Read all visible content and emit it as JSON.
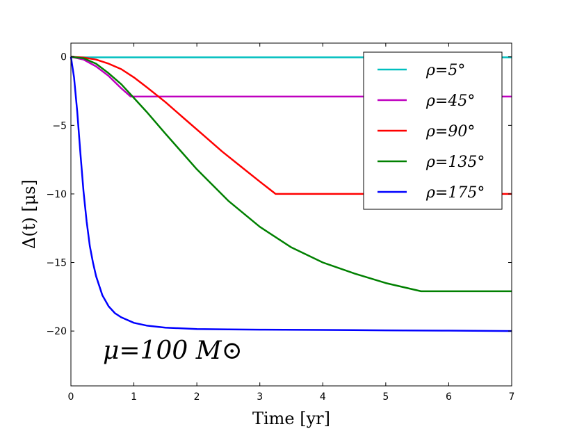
{
  "chart_data": {
    "type": "line",
    "xlabel": "Time  [yr]",
    "ylabel": "Δ(t)  [μs]",
    "xlim": [
      0,
      7
    ],
    "ylim": [
      -24,
      1
    ],
    "xticks": [
      0,
      1,
      2,
      3,
      4,
      5,
      6,
      7
    ],
    "yticks": [
      0,
      -5,
      -10,
      -15,
      -20
    ],
    "xtick_labels": [
      "0",
      "1",
      "2",
      "3",
      "4",
      "5",
      "6",
      "7"
    ],
    "ytick_labels": [
      "0",
      "−5",
      "−10",
      "−15",
      "−20"
    ],
    "grid": false,
    "legend_position": "top-right",
    "annotation": "μ=100 M⊙",
    "series": [
      {
        "name": "ρ=5°",
        "color": "#00bfbf",
        "x": [
          0,
          0.05,
          0.1,
          0.15,
          0.2,
          7
        ],
        "y": [
          0,
          -0.02,
          -0.03,
          -0.04,
          -0.04,
          -0.04
        ]
      },
      {
        "name": "ρ=45°",
        "color": "#bf00bf",
        "x": [
          0,
          0.2,
          0.4,
          0.6,
          0.8,
          0.95,
          7
        ],
        "y": [
          0,
          -0.2,
          -0.7,
          -1.4,
          -2.3,
          -2.9,
          -2.9
        ]
      },
      {
        "name": "ρ=90°",
        "color": "#ff0000",
        "x": [
          0,
          0.2,
          0.4,
          0.6,
          0.8,
          1.0,
          1.2,
          1.5,
          1.8,
          2.1,
          2.4,
          2.7,
          3.0,
          3.25,
          7
        ],
        "y": [
          0,
          -0.05,
          -0.2,
          -0.5,
          -0.9,
          -1.5,
          -2.2,
          -3.3,
          -4.5,
          -5.7,
          -6.9,
          -8.0,
          -9.1,
          -10.0,
          -10.0
        ]
      },
      {
        "name": "ρ=135°",
        "color": "#008000",
        "x": [
          0,
          0.2,
          0.4,
          0.6,
          0.8,
          1.0,
          1.2,
          1.5,
          2.0,
          2.5,
          3.0,
          3.5,
          4.0,
          4.5,
          5.0,
          5.56,
          7
        ],
        "y": [
          0,
          -0.1,
          -0.5,
          -1.2,
          -2.0,
          -3.0,
          -4.0,
          -5.6,
          -8.2,
          -10.5,
          -12.4,
          -13.9,
          -15.0,
          -15.8,
          -16.5,
          -17.1,
          -17.1
        ]
      },
      {
        "name": "ρ=175°",
        "color": "#0000ff",
        "x": [
          0,
          0.05,
          0.1,
          0.15,
          0.2,
          0.25,
          0.3,
          0.35,
          0.4,
          0.5,
          0.6,
          0.7,
          0.8,
          1.0,
          1.2,
          1.5,
          2.0,
          2.5,
          3.0,
          4.0,
          5.0,
          6.0,
          7.0
        ],
        "y": [
          0,
          -1.5,
          -4.0,
          -7.0,
          -9.8,
          -12.0,
          -13.8,
          -15.0,
          -16.0,
          -17.4,
          -18.2,
          -18.7,
          -19.0,
          -19.4,
          -19.6,
          -19.75,
          -19.85,
          -19.88,
          -19.9,
          -19.92,
          -19.95,
          -19.97,
          -20.0
        ]
      }
    ]
  }
}
